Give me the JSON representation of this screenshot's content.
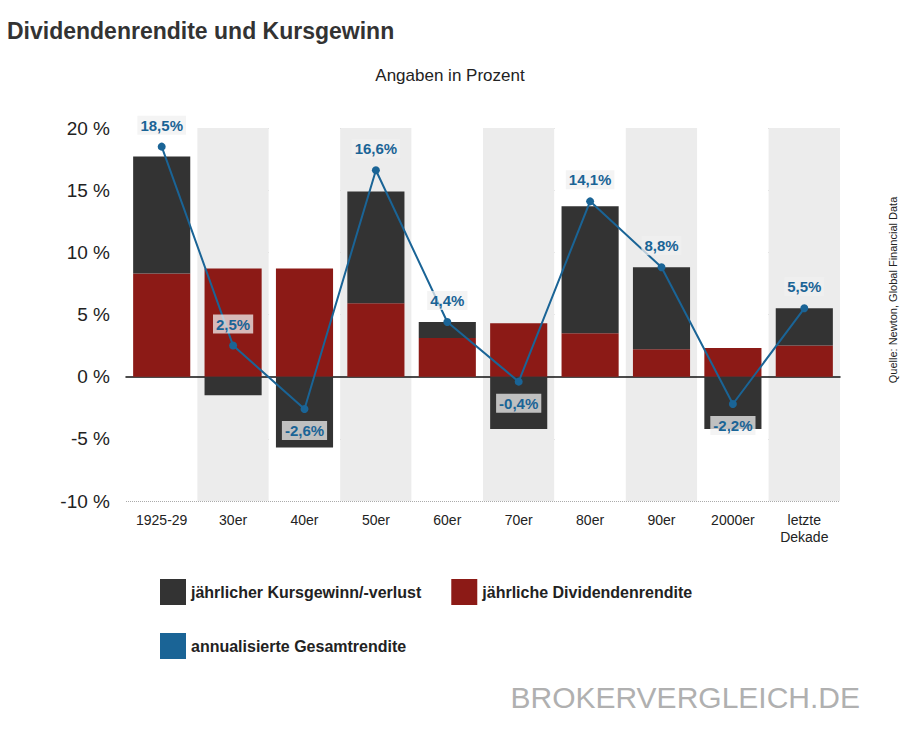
{
  "chart_data": {
    "type": "bar",
    "title": "Dividendenrendite und Kursgewinn",
    "subtitle": "Angaben in Prozent",
    "source": "Quelle: Newton, Global Financial Data",
    "watermark": "BROKERVERGLEICH.DE",
    "stacked": true,
    "grid": true,
    "legend": "bottom",
    "categories": [
      "1925-29",
      "30er",
      "40er",
      "50er",
      "60er",
      "70er",
      "80er",
      "90er",
      "2000er",
      "letzte\nDekade"
    ],
    "series": [
      {
        "name": "jährliche Dividendenrendite",
        "type": "bar",
        "color": "#8c1a16",
        "values": [
          8.3,
          8.7,
          8.7,
          5.9,
          3.1,
          4.3,
          3.5,
          2.2,
          2.3,
          2.5
        ]
      },
      {
        "name": "jährlicher Kursgewinn/-verlust",
        "type": "bar",
        "color": "#333333",
        "values": [
          9.4,
          -1.5,
          -5.7,
          9.0,
          1.3,
          -4.2,
          10.2,
          6.6,
          -4.2,
          3.0
        ]
      },
      {
        "name": "annualisierte Gesamtrendite",
        "type": "line",
        "color": "#1a6496",
        "marker": "circle",
        "data_labels": true,
        "values": [
          18.5,
          2.5,
          -2.6,
          16.6,
          4.4,
          -0.4,
          14.1,
          8.8,
          -2.2,
          5.5
        ],
        "value_labels": [
          "18,5%",
          "2,5%",
          "-2,6%",
          "16,6%",
          "4,4%",
          "-0,4%",
          "14,1%",
          "8,8%",
          "-2,2%",
          "5,5%"
        ]
      }
    ],
    "legend_order": [
      "jährlicher Kursgewinn/-verlust",
      "jährliche Dividendenrendite",
      "annualisierte Gesamtrendite"
    ],
    "ylim": [
      -10,
      20
    ],
    "yticks": [
      {
        "value": -10,
        "label": "-10 %"
      },
      {
        "value": -5,
        "label": "-5 %"
      },
      {
        "value": 0,
        "label": "0 %"
      },
      {
        "value": 5,
        "label": "5 %"
      },
      {
        "value": 10,
        "label": "10 %"
      },
      {
        "value": 15,
        "label": "15 %"
      },
      {
        "value": 20,
        "label": "20 %"
      }
    ]
  }
}
